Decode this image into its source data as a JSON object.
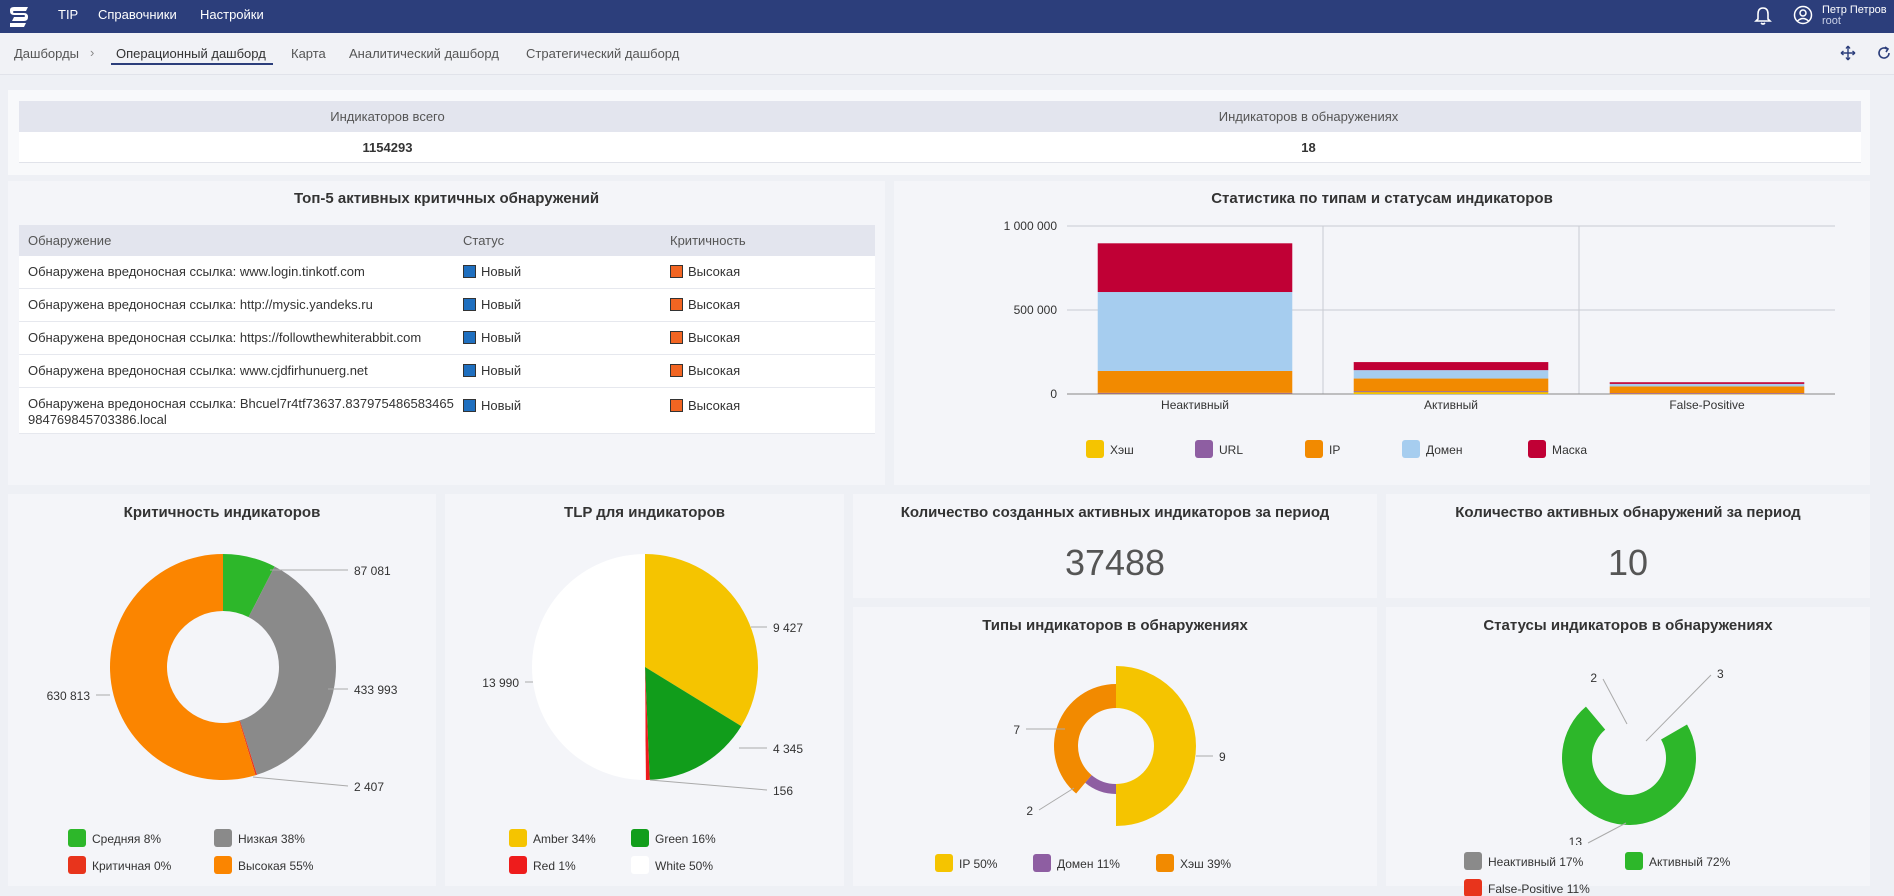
{
  "topnav": {
    "items": [
      "TIP",
      "Справочники",
      "Настройки"
    ]
  },
  "user": {
    "name": "Петр Петров",
    "role": "root"
  },
  "subnav": {
    "breadcrumb": "Дашборды",
    "tabs": [
      "Операционный дашборд",
      "Карта",
      "Аналитический дашборд",
      "Стратегический дашборд"
    ]
  },
  "kpi": {
    "total_label": "Индикаторов всего",
    "total_value": "1154293",
    "detected_label": "Индикаторов в обнаружениях",
    "detected_value": "18"
  },
  "top5": {
    "title": "Топ-5 активных критичных обнаружений",
    "columns": [
      "Обнаружение",
      "Статус",
      "Критичность"
    ],
    "rows": [
      {
        "detection": "Обнаружена вредоносная ссылка: www.login.tinkotf.com",
        "status": "Новый",
        "severity": "Высокая"
      },
      {
        "detection": "Обнаружена вредоносная ссылка: http://mysic.yandeks.ru",
        "status": "Новый",
        "severity": "Высокая"
      },
      {
        "detection": "Обнаружена вредоносная ссылка: https://followthewhiterabbit.com",
        "status": "Новый",
        "severity": "Высокая"
      },
      {
        "detection": "Обнаружена вредоносная ссылка: www.cjdfirhunuerg.net",
        "status": "Новый",
        "severity": "Высокая"
      },
      {
        "detection": "Обнаружена вредоносная ссылка: Bhcuel7r4tf73637.837975486583465984769845703386.local",
        "status": "Новый",
        "severity": "Высокая"
      }
    ],
    "status_color": "#1f6fbf",
    "severity_color": "#f26522"
  },
  "stats": {
    "title": "Статистика по типам и статусам индикаторов",
    "y_ticks": [
      "1 000 000",
      "500 000",
      "0"
    ],
    "legend": [
      "Хэш",
      "URL",
      "IP",
      "Домен",
      "Маска"
    ]
  },
  "criticality": {
    "title": "Критичность индикаторов",
    "labels": [
      "87 081",
      "433 993",
      "2 407",
      "630 813"
    ],
    "legend": [
      "Средняя 8%",
      "Низкая 38%",
      "Критичная 0%",
      "Высокая 55%"
    ]
  },
  "tlp": {
    "title": "TLP для индикаторов",
    "labels": [
      "9 427",
      "4 345",
      "156",
      "13 990"
    ],
    "legend": [
      "Amber 34%",
      "Green 16%",
      "Red 1%",
      "White 50%"
    ]
  },
  "created": {
    "title": "Количество созданных активных индикаторов за период",
    "value": "37488"
  },
  "active_detections": {
    "title": "Количество активных обнаружений за период",
    "value": "10"
  },
  "types_in_detections": {
    "title": "Типы индикаторов в обнаружениях",
    "labels": [
      "9",
      "7",
      "2"
    ],
    "legend": [
      "IP 50%",
      "Домен 11%",
      "Хэш 39%"
    ]
  },
  "statuses_in_detections": {
    "title": "Статусы индикаторов в обнаружениях",
    "labels": [
      "2",
      "3",
      "13"
    ],
    "legend": [
      "Неактивный 17%",
      "Активный 72%",
      "False-Positive 11%"
    ]
  },
  "colors": {
    "hash": "#f5c400",
    "url": "#8e5ea2",
    "ip": "#f28a00",
    "domain": "#a6cdef",
    "mask": "#c00035",
    "green": "#2db72a",
    "gray": "#8a8a8a",
    "red": "#e8341c",
    "orange": "#fb8500"
  },
  "chart_data": [
    {
      "type": "bar",
      "title": "Статистика по типам и статусам индикаторов",
      "categories": [
        "Неактивный",
        "Активный",
        "False-Positive"
      ],
      "series": [
        {
          "name": "Хэш",
          "values": [
            5000,
            15000,
            3000
          ]
        },
        {
          "name": "URL",
          "values": [
            2000,
            2000,
            2000
          ]
        },
        {
          "name": "IP",
          "values": [
            130000,
            75000,
            40000
          ]
        },
        {
          "name": "Домен",
          "values": [
            470000,
            50000,
            15000
          ]
        },
        {
          "name": "Маска",
          "values": [
            290000,
            48000,
            10000
          ]
        }
      ],
      "ylim": [
        0,
        1000000
      ],
      "y_ticks": [
        0,
        500000,
        1000000
      ],
      "grid": true,
      "legend_placement": "bottom"
    },
    {
      "type": "pie",
      "title": "Критичность индикаторов",
      "categories": [
        "Средняя",
        "Низкая",
        "Критичная",
        "Высокая"
      ],
      "values": [
        87081,
        433993,
        2407,
        630813
      ]
    },
    {
      "type": "pie",
      "title": "TLP для индикаторов",
      "categories": [
        "Amber",
        "Green",
        "Red",
        "White"
      ],
      "values": [
        9427,
        4345,
        156,
        13990
      ]
    },
    {
      "type": "pie",
      "title": "Типы индикаторов в обнаружениях",
      "categories": [
        "IP",
        "Домен",
        "Хэш"
      ],
      "values": [
        9,
        2,
        7
      ]
    },
    {
      "type": "pie",
      "title": "Статусы индикаторов в обнаружениях",
      "categories": [
        "Неактивный",
        "Активный",
        "False-Positive"
      ],
      "values": [
        3,
        13,
        2
      ]
    }
  ]
}
